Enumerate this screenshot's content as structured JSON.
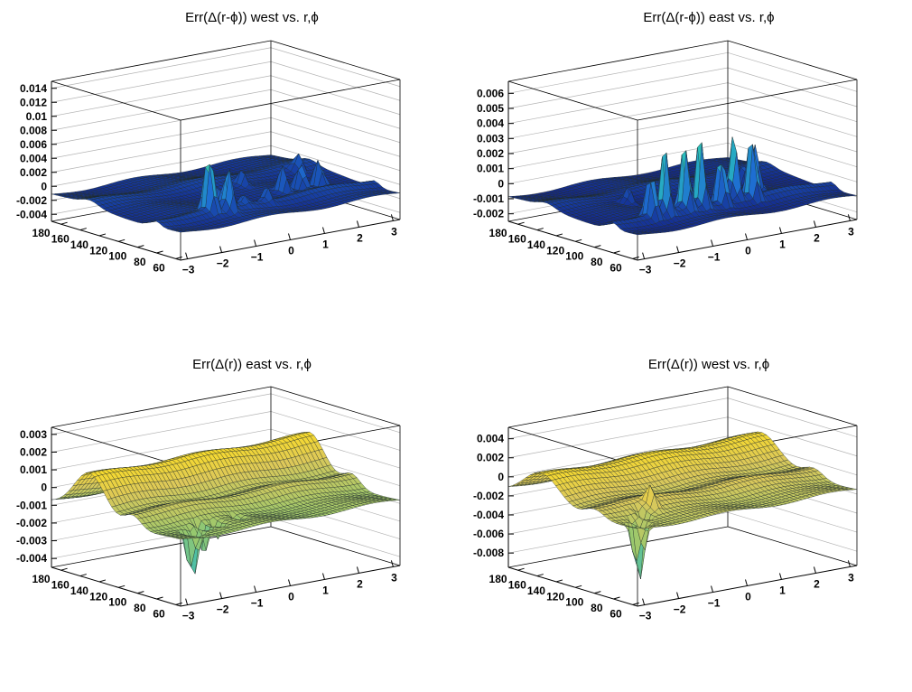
{
  "chart_data": [
    {
      "type": "surface",
      "title": "Err(Δ(r-ϕ)) west vs. r,ϕ",
      "colorscale": "blue",
      "zlim": [
        -0.005,
        0.015
      ],
      "zticks": [
        "-0.004",
        "-0.002",
        "0",
        "0.002",
        "0.004",
        "0.006",
        "0.008",
        "0.01",
        "0.012",
        "0.014"
      ],
      "ztick_values": [
        -0.004,
        -0.002,
        0,
        0.002,
        0.004,
        0.006,
        0.008,
        0.01,
        0.012,
        0.014
      ],
      "rticks": [
        "60",
        "80",
        "100",
        "120",
        "140",
        "160",
        "180"
      ],
      "rtick_values": [
        60,
        80,
        100,
        120,
        140,
        160,
        180
      ],
      "phiticks": [
        "−3",
        "−2",
        "−1",
        "0",
        "1",
        "2",
        "3"
      ],
      "phitick_values": [
        -3,
        -2,
        -1,
        0,
        1,
        2,
        3
      ],
      "rlim": [
        55,
        190
      ],
      "philim": [
        -3.2,
        3.2
      ],
      "base": -0.0012,
      "ridges": [
        {
          "r": 82,
          "amp": 0.0009,
          "width": 8
        },
        {
          "r": 150,
          "amp": 0.0007,
          "width": 12
        }
      ],
      "spikes": [
        {
          "phi": -1.55,
          "r": 84,
          "h": 0.0095
        },
        {
          "phi": -1.15,
          "r": 78,
          "h": 0.0055
        },
        {
          "phi": -1.1,
          "r": 92,
          "h": 0.0035
        },
        {
          "phi": -0.55,
          "r": 84,
          "h": 0.0012
        },
        {
          "phi": 0.1,
          "r": 84,
          "h": 0.002
        },
        {
          "phi": 1.05,
          "r": 100,
          "h": 0.004
        },
        {
          "phi": 1.55,
          "r": 100,
          "h": 0.0045
        },
        {
          "phi": 2.1,
          "r": 100,
          "h": 0.0048
        },
        {
          "phi": 0.7,
          "r": 130,
          "h": 0.0022
        },
        {
          "phi": 2.6,
          "r": 140,
          "h": 0.0025
        }
      ]
    },
    {
      "type": "surface",
      "title": "Err(Δ(r-ϕ)) east vs. r,ϕ",
      "colorscale": "blue",
      "zlim": [
        -0.0025,
        0.0068
      ],
      "zticks": [
        "-0.002",
        "-0.001",
        "0",
        "0.001",
        "0.002",
        "0.003",
        "0.004",
        "0.005",
        "0.006"
      ],
      "ztick_values": [
        -0.002,
        -0.001,
        0,
        0.001,
        0.002,
        0.003,
        0.004,
        0.005,
        0.006
      ],
      "rticks": [
        "60",
        "80",
        "100",
        "120",
        "140",
        "160",
        "180"
      ],
      "rtick_values": [
        60,
        80,
        100,
        120,
        140,
        160,
        180
      ],
      "phiticks": [
        "−3",
        "−2",
        "−1",
        "0",
        "1",
        "2",
        "3"
      ],
      "phitick_values": [
        -3,
        -2,
        -1,
        0,
        1,
        2,
        3
      ],
      "rlim": [
        55,
        190
      ],
      "philim": [
        -3.2,
        3.2
      ],
      "base": -0.0009,
      "ridges": [
        {
          "r": 82,
          "amp": 0.0005,
          "width": 8
        },
        {
          "r": 150,
          "amp": 0.0003,
          "width": 12
        }
      ],
      "spikes": [
        {
          "phi": -2.0,
          "r": 84,
          "h": 0.0035
        },
        {
          "phi": -1.6,
          "r": 84,
          "h": 0.0042
        },
        {
          "phi": -1.0,
          "r": 84,
          "h": 0.0045
        },
        {
          "phi": -0.55,
          "r": 84,
          "h": 0.0048
        },
        {
          "phi": 0.05,
          "r": 84,
          "h": 0.0038
        },
        {
          "phi": 0.55,
          "r": 90,
          "h": 0.0046
        },
        {
          "phi": 0.95,
          "r": 84,
          "h": 0.0044
        },
        {
          "phi": 1.5,
          "r": 100,
          "h": 0.0032
        },
        {
          "phi": -1.4,
          "r": 130,
          "h": 0.0012
        },
        {
          "phi": 2.0,
          "r": 130,
          "h": 0.0016
        }
      ]
    },
    {
      "type": "surface",
      "title": "Err(Δ(r)) east vs. r,ϕ",
      "colorscale": "yellow",
      "zlim": [
        -0.0045,
        0.0034
      ],
      "zticks": [
        "-0.004",
        "-0.003",
        "-0.002",
        "-0.001",
        "0",
        "0.001",
        "0.002",
        "0.003"
      ],
      "ztick_values": [
        -0.004,
        -0.003,
        -0.002,
        -0.001,
        0,
        0.001,
        0.002,
        0.003
      ],
      "rticks": [
        "60",
        "80",
        "100",
        "120",
        "140",
        "160",
        "180"
      ],
      "rtick_values": [
        60,
        80,
        100,
        120,
        140,
        160,
        180
      ],
      "phiticks": [
        "−3",
        "−2",
        "−1",
        "0",
        "1",
        "2",
        "3"
      ],
      "phitick_values": [
        -3,
        -2,
        -1,
        0,
        1,
        2,
        3
      ],
      "rlim": [
        55,
        190
      ],
      "philim": [
        -3.2,
        3.2
      ],
      "base": -0.0008,
      "ridges": [
        {
          "r": 150,
          "amp": 0.0022,
          "width": 22
        },
        {
          "r": 105,
          "amp": 0.0007,
          "width": 12
        }
      ],
      "spikes": [
        {
          "phi": -2.45,
          "r": 70,
          "h": -0.0033
        },
        {
          "phi": -2.2,
          "r": 75,
          "h": -0.0012
        },
        {
          "phi": -1.85,
          "r": 80,
          "h": -0.0018
        },
        {
          "phi": -1.5,
          "r": 78,
          "h": -0.001
        },
        {
          "phi": -0.8,
          "r": 80,
          "h": -0.0008
        }
      ]
    },
    {
      "type": "surface",
      "title": "Err(Δ(r)) west vs. r,ϕ",
      "colorscale": "yellow",
      "zlim": [
        -0.0095,
        0.0052
      ],
      "zticks": [
        "-0.008",
        "-0.006",
        "-0.004",
        "-0.002",
        "0",
        "0.002",
        "0.004"
      ],
      "ztick_values": [
        -0.008,
        -0.006,
        -0.004,
        -0.002,
        0,
        0.002,
        0.004
      ],
      "rticks": [
        "60",
        "80",
        "100",
        "120",
        "140",
        "160",
        "180"
      ],
      "rtick_values": [
        60,
        80,
        100,
        120,
        140,
        160,
        180
      ],
      "phiticks": [
        "−3",
        "−2",
        "−1",
        "0",
        "1",
        "2",
        "3"
      ],
      "phitick_values": [
        -3,
        -2,
        -1,
        0,
        1,
        2,
        3
      ],
      "rlim": [
        55,
        190
      ],
      "philim": [
        -3.2,
        3.2
      ],
      "base": -0.0015,
      "ridges": [
        {
          "r": 155,
          "amp": 0.0028,
          "width": 25
        },
        {
          "r": 100,
          "amp": 0.001,
          "width": 14
        }
      ],
      "spikes": [
        {
          "phi": -2.9,
          "r": 65,
          "h": -0.0072
        },
        {
          "phi": -2.6,
          "r": 75,
          "h": -0.003
        },
        {
          "phi": -2.2,
          "r": 85,
          "h": -0.0018
        },
        {
          "phi": -1.8,
          "r": 90,
          "h": 0.0022
        }
      ]
    }
  ]
}
